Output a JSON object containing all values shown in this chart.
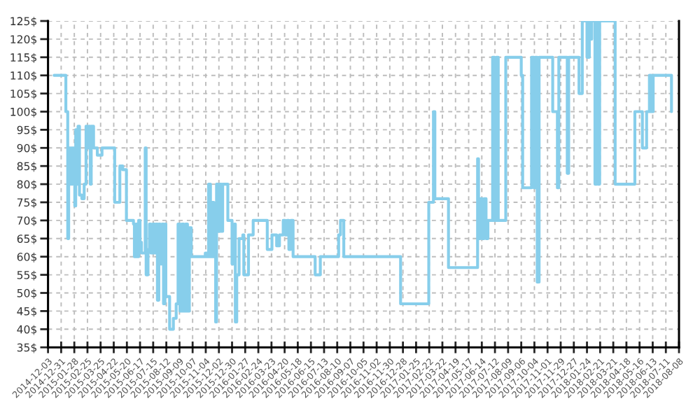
{
  "chart_data": {
    "type": "step",
    "x": [
      "2014-12-16",
      "2015-01-10",
      "2015-01-14",
      "2015-01-16",
      "2015-01-18",
      "2015-01-20",
      "2015-01-22",
      "2015-01-24",
      "2015-01-27",
      "2015-01-29",
      "2015-01-31",
      "2015-02-03",
      "2015-02-05",
      "2015-02-08",
      "2015-02-13",
      "2015-02-18",
      "2015-02-22",
      "2015-02-25",
      "2015-02-28",
      "2015-03-03",
      "2015-03-05",
      "2015-03-10",
      "2015-03-18",
      "2015-03-28",
      "2015-04-24",
      "2015-05-05",
      "2015-05-11",
      "2015-05-19",
      "2015-06-03",
      "2015-06-05",
      "2015-06-08",
      "2015-06-11",
      "2015-06-14",
      "2015-06-17",
      "2015-06-20",
      "2015-06-28",
      "2015-06-30",
      "2015-07-04",
      "2015-07-07",
      "2015-07-10",
      "2015-07-14",
      "2015-07-18",
      "2015-07-21",
      "2015-07-24",
      "2015-07-27",
      "2015-07-30",
      "2015-08-03",
      "2015-08-06",
      "2015-08-09",
      "2015-08-11",
      "2015-08-19",
      "2015-08-27",
      "2015-09-02",
      "2015-09-06",
      "2015-09-10",
      "2015-09-14",
      "2015-09-18",
      "2015-09-22",
      "2015-09-26",
      "2015-09-30",
      "2015-10-04",
      "2015-11-03",
      "2015-11-07",
      "2015-11-10",
      "2015-11-14",
      "2015-11-17",
      "2015-11-21",
      "2015-11-25",
      "2015-11-27",
      "2015-11-30",
      "2015-12-03",
      "2015-12-07",
      "2015-12-10",
      "2015-12-21",
      "2015-12-30",
      "2016-01-04",
      "2016-01-06",
      "2016-01-09",
      "2016-01-14",
      "2016-01-22",
      "2016-01-24",
      "2016-02-03",
      "2016-02-13",
      "2016-03-14",
      "2016-03-24",
      "2016-04-03",
      "2016-04-09",
      "2016-04-17",
      "2016-04-21",
      "2016-04-25",
      "2016-04-29",
      "2016-05-03",
      "2016-05-08",
      "2016-06-24",
      "2016-07-05",
      "2016-08-13",
      "2016-08-17",
      "2016-08-24",
      "2016-12-23",
      "2017-02-21",
      "2017-03-03",
      "2017-03-06",
      "2017-04-04",
      "2017-06-05",
      "2017-06-07",
      "2017-06-11",
      "2017-06-15",
      "2017-06-19",
      "2017-06-23",
      "2017-06-27",
      "2017-07-07",
      "2017-07-11",
      "2017-07-15",
      "2017-07-19",
      "2017-08-04",
      "2017-09-06",
      "2017-09-09",
      "2017-09-28",
      "2017-10-03",
      "2017-10-06",
      "2017-10-10",
      "2017-10-14",
      "2017-11-12",
      "2017-11-22",
      "2017-11-25",
      "2017-12-13",
      "2017-12-16",
      "2018-01-07",
      "2018-01-14",
      "2018-01-24",
      "2018-01-29",
      "2018-01-31",
      "2018-02-03",
      "2018-02-10",
      "2018-02-14",
      "2018-02-16",
      "2018-02-20",
      "2018-03-25",
      "2018-05-06",
      "2018-05-22",
      "2018-05-31",
      "2018-06-06",
      "2018-06-10",
      "2018-06-14",
      "2018-07-23"
    ],
    "series": [
      {
        "color": "#87ceeb",
        "values": [
          110,
          100,
          65,
          90,
          80,
          90,
          80,
          90,
          80,
          74,
          95,
          80,
          96,
          77,
          76,
          80,
          96,
          90,
          96,
          80,
          96,
          90,
          88,
          90,
          75,
          85,
          84,
          70,
          69,
          60,
          69,
          60,
          70,
          64,
          61,
          90,
          55,
          62,
          69,
          61,
          69,
          61,
          69,
          48,
          69,
          58,
          69,
          47,
          69,
          49,
          40,
          43,
          47,
          69,
          45,
          69,
          45,
          69,
          45,
          68,
          60,
          61,
          60,
          80,
          60,
          75,
          60,
          42,
          80,
          67,
          80,
          67,
          80,
          70,
          58,
          69,
          42,
          55,
          65,
          66,
          55,
          66,
          70,
          62,
          66,
          63,
          66,
          70,
          66,
          70,
          62,
          70,
          60,
          55,
          60,
          66,
          70,
          60,
          47,
          75,
          100,
          76,
          57,
          87,
          65,
          76,
          65,
          76,
          65,
          70,
          115,
          70,
          115,
          70,
          115,
          110,
          79,
          115,
          79,
          115,
          53,
          115,
          100,
          79,
          115,
          83,
          115,
          105,
          125,
          115,
          125,
          120,
          125,
          80,
          125,
          80,
          125,
          80,
          100,
          90,
          100,
          110,
          100,
          110,
          100
        ]
      }
    ],
    "xlim": [
      "2014-12-03",
      "2018-08-08"
    ],
    "xticks": [
      "2014-12-03",
      "2014-12-31",
      "2015-01-28",
      "2015-02-25",
      "2015-03-25",
      "2015-04-22",
      "2015-05-20",
      "2015-06-17",
      "2015-07-15",
      "2015-08-12",
      "2015-09-09",
      "2015-10-07",
      "2015-11-04",
      "2015-12-02",
      "2015-12-30",
      "2016-01-27",
      "2016-02-24",
      "2016-03-23",
      "2016-04-20",
      "2016-05-18",
      "2016-06-15",
      "2016-07-13",
      "2016-08-10",
      "2016-09-07",
      "2016-10-05",
      "2016-11-02",
      "2016-11-30",
      "2016-12-28",
      "2017-01-25",
      "2017-02-22",
      "2017-03-22",
      "2017-04-19",
      "2017-05-17",
      "2017-06-14",
      "2017-07-12",
      "2017-08-09",
      "2017-09-06",
      "2017-10-04",
      "2017-11-01",
      "2017-11-29",
      "2017-12-27",
      "2018-01-24",
      "2018-02-21",
      "2018-03-21",
      "2018-04-18",
      "2018-05-16",
      "2018-06-13",
      "2018-07-11",
      "2018-08-08"
    ],
    "ylim": [
      35,
      125
    ],
    "yticks": [
      {
        "value": 35,
        "label": "35$"
      },
      {
        "value": 40,
        "label": "40$"
      },
      {
        "value": 45,
        "label": "45$"
      },
      {
        "value": 50,
        "label": "50$"
      },
      {
        "value": 55,
        "label": "55$"
      },
      {
        "value": 60,
        "label": "60$"
      },
      {
        "value": 65,
        "label": "65$"
      },
      {
        "value": 70,
        "label": "70$"
      },
      {
        "value": 75,
        "label": "75$"
      },
      {
        "value": 80,
        "label": "80$"
      },
      {
        "value": 85,
        "label": "85$"
      },
      {
        "value": 90,
        "label": "90$"
      },
      {
        "value": 95,
        "label": "95$"
      },
      {
        "value": 100,
        "label": "100$"
      },
      {
        "value": 105,
        "label": "105$"
      },
      {
        "value": 110,
        "label": "110$"
      },
      {
        "value": 115,
        "label": "115$"
      },
      {
        "value": 120,
        "label": "120$"
      },
      {
        "value": 125,
        "label": "125$"
      }
    ],
    "grid": true
  }
}
